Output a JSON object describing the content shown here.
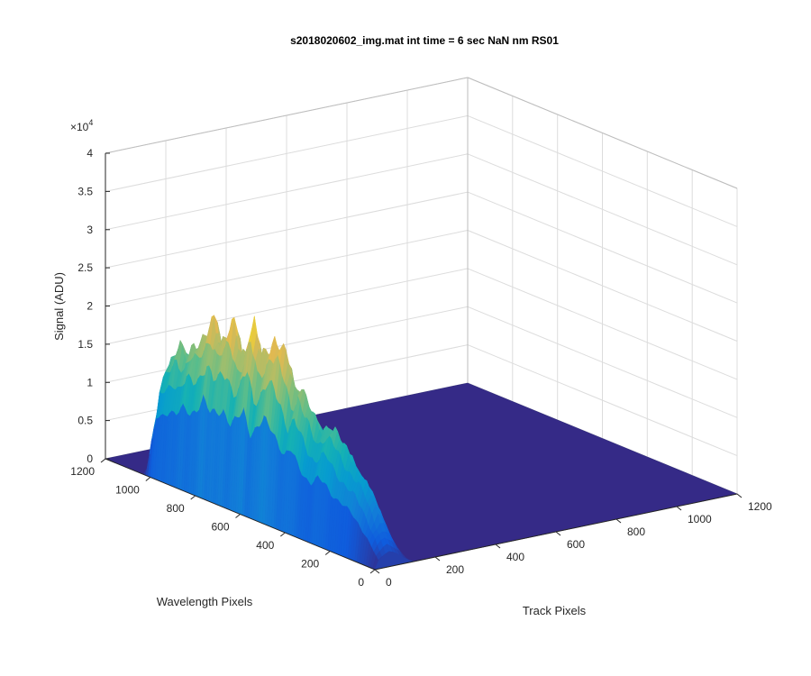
{
  "chart_data": {
    "type": "surface",
    "title": "s2018020602_img.mat int time = 6 sec  NaN nm RS01",
    "xlabel": "Track Pixels",
    "ylabel": "Wavelength Pixels",
    "zlabel": "Signal (ADU)",
    "z_exponent_label": "×10",
    "z_exponent_power": "4",
    "xlim": [
      0,
      1200
    ],
    "ylim": [
      0,
      1200
    ],
    "zlim": [
      0,
      40000
    ],
    "x_ticks": [
      "0",
      "200",
      "400",
      "600",
      "800",
      "1000",
      "1200"
    ],
    "y_ticks": [
      "0",
      "200",
      "400",
      "600",
      "800",
      "1000",
      "1200"
    ],
    "z_ticks": [
      "0",
      "0.5",
      "1",
      "1.5",
      "2",
      "2.5",
      "3",
      "3.5",
      "4"
    ],
    "grid": true,
    "colormap": "parula",
    "signal_track_range": [
      0,
      130
    ],
    "signal_wavelength_range": [
      0,
      1030
    ],
    "signal_profile": {
      "wavelength": [
        0,
        30,
        60,
        90,
        120,
        150,
        180,
        210,
        240,
        270,
        300,
        330,
        360,
        390,
        420,
        450,
        480,
        510,
        540,
        570,
        600,
        630,
        660,
        690,
        720,
        750,
        780,
        810,
        840,
        870,
        900,
        930,
        960,
        990,
        1010,
        1030
      ],
      "peak_signal": [
        2000,
        4500,
        7000,
        9000,
        10500,
        11500,
        12500,
        13500,
        15000,
        15500,
        14000,
        15000,
        17000,
        19500,
        18000,
        21000,
        23000,
        24000,
        22000,
        20000,
        24500,
        21500,
        20000,
        23000,
        21500,
        20500,
        23500,
        20500,
        18500,
        19000,
        17000,
        17500,
        15500,
        14000,
        8000,
        1500
      ]
    }
  }
}
